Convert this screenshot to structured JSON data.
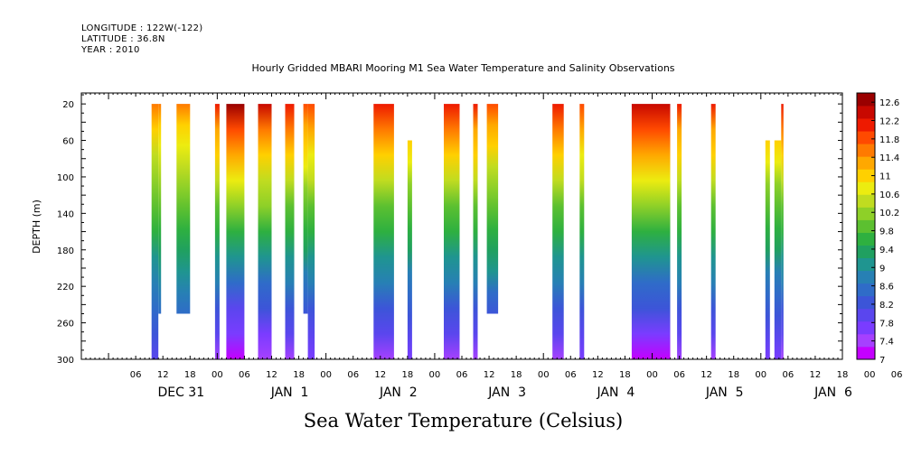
{
  "header": {
    "longitude": "LONGITUDE : 122W(-122)",
    "latitude": "LATITUDE : 36.8N",
    "year": "YEAR : 2010"
  },
  "chart_data": {
    "type": "heatmap",
    "title": "Hourly Gridded MBARI Mooring M1 Sea Water Temperature and Salinity Observations",
    "footer": "Sea Water Temperature (Celsius)",
    "ylabel": "DEPTH (m)",
    "xlabel": "",
    "x_unit": "hours since Dec 30 18:00",
    "xlim": [
      0,
      168
    ],
    "ylim": [
      0,
      300
    ],
    "y_reversed": true,
    "y_ticks": [
      20,
      60,
      100,
      140,
      180,
      220,
      260,
      300
    ],
    "x_hour_ticks": [
      "06",
      "12",
      "18",
      "00",
      "06",
      "12",
      "18",
      "00",
      "06",
      "12",
      "18",
      "00",
      "06",
      "12",
      "18",
      "00",
      "06",
      "12",
      "18",
      "00",
      "06",
      "12",
      "18",
      "00",
      "06",
      "12",
      "18",
      "00",
      "06",
      "12",
      "18",
      "00"
    ],
    "day_labels": [
      "DEC 31",
      "JAN  1",
      "JAN  2",
      "JAN  3",
      "JAN  4",
      "JAN  5",
      "JAN  6"
    ],
    "colorbar": {
      "ticks": [
        "12.6",
        "12.2",
        "11.8",
        "11.4",
        "11",
        "10.6",
        "10.2",
        "9.8",
        "9.4",
        "9",
        "8.6",
        "8.2",
        "7.8",
        "7.4",
        "7"
      ],
      "min": 7.0,
      "max": 12.8,
      "colors": [
        "#c400ff",
        "#a640ff",
        "#7a3cff",
        "#5a46ee",
        "#3c55d8",
        "#2f6cc8",
        "#2780b4",
        "#1f9590",
        "#20a060",
        "#2eb040",
        "#5cc030",
        "#8ed028",
        "#c0dc20",
        "#ecec10",
        "#ffd000",
        "#ffa800",
        "#ff7a00",
        "#ff4a00",
        "#ee1a00",
        "#c80800",
        "#9a0000"
      ]
    },
    "data_segments": [
      {
        "x0": 15.5,
        "x1": 17.0,
        "top": 20,
        "bottom": 300,
        "warmth": 0.2
      },
      {
        "x0": 17.0,
        "x1": 17.6,
        "top": 20,
        "bottom": 250,
        "warmth": 0.2
      },
      {
        "x0": 21.0,
        "x1": 24.0,
        "top": 20,
        "bottom": 250,
        "warmth": 0.3
      },
      {
        "x0": 29.5,
        "x1": 30.5,
        "top": 20,
        "bottom": 300,
        "warmth": 0.6
      },
      {
        "x0": 32.0,
        "x1": 36.0,
        "top": 20,
        "bottom": 300,
        "warmth": 1.0
      },
      {
        "x0": 39.0,
        "x1": 42.0,
        "top": 20,
        "bottom": 300,
        "warmth": 0.8
      },
      {
        "x0": 45.0,
        "x1": 47.0,
        "top": 20,
        "bottom": 300,
        "warmth": 0.7
      },
      {
        "x0": 49.0,
        "x1": 50.0,
        "top": 20,
        "bottom": 250,
        "warmth": 0.5
      },
      {
        "x0": 50.0,
        "x1": 51.5,
        "top": 20,
        "bottom": 300,
        "warmth": 0.5
      },
      {
        "x0": 64.5,
        "x1": 69.0,
        "top": 20,
        "bottom": 300,
        "warmth": 0.7
      },
      {
        "x0": 72.0,
        "x1": 73.0,
        "top": 60,
        "bottom": 300,
        "warmth": 0.5
      },
      {
        "x0": 80.0,
        "x1": 83.5,
        "top": 20,
        "bottom": 300,
        "warmth": 0.7
      },
      {
        "x0": 86.5,
        "x1": 87.5,
        "top": 20,
        "bottom": 300,
        "warmth": 0.6
      },
      {
        "x0": 89.5,
        "x1": 92.0,
        "top": 20,
        "bottom": 250,
        "warmth": 0.4
      },
      {
        "x0": 104.0,
        "x1": 106.5,
        "top": 20,
        "bottom": 300,
        "warmth": 0.7
      },
      {
        "x0": 110.0,
        "x1": 111.0,
        "top": 20,
        "bottom": 300,
        "warmth": 0.5
      },
      {
        "x0": 121.5,
        "x1": 130.0,
        "top": 20,
        "bottom": 300,
        "warmth": 0.9
      },
      {
        "x0": 131.5,
        "x1": 132.5,
        "top": 20,
        "bottom": 300,
        "warmth": 0.6
      },
      {
        "x0": 139.0,
        "x1": 140.0,
        "top": 20,
        "bottom": 300,
        "warmth": 0.6
      },
      {
        "x0": 151.0,
        "x1": 152.0,
        "top": 60,
        "bottom": 300,
        "warmth": 0.5
      },
      {
        "x0": 153.0,
        "x1": 154.5,
        "top": 60,
        "bottom": 300,
        "warmth": 0.5
      },
      {
        "x0": 154.5,
        "x1": 155.0,
        "top": 20,
        "bottom": 300,
        "warmth": 0.7
      }
    ]
  }
}
